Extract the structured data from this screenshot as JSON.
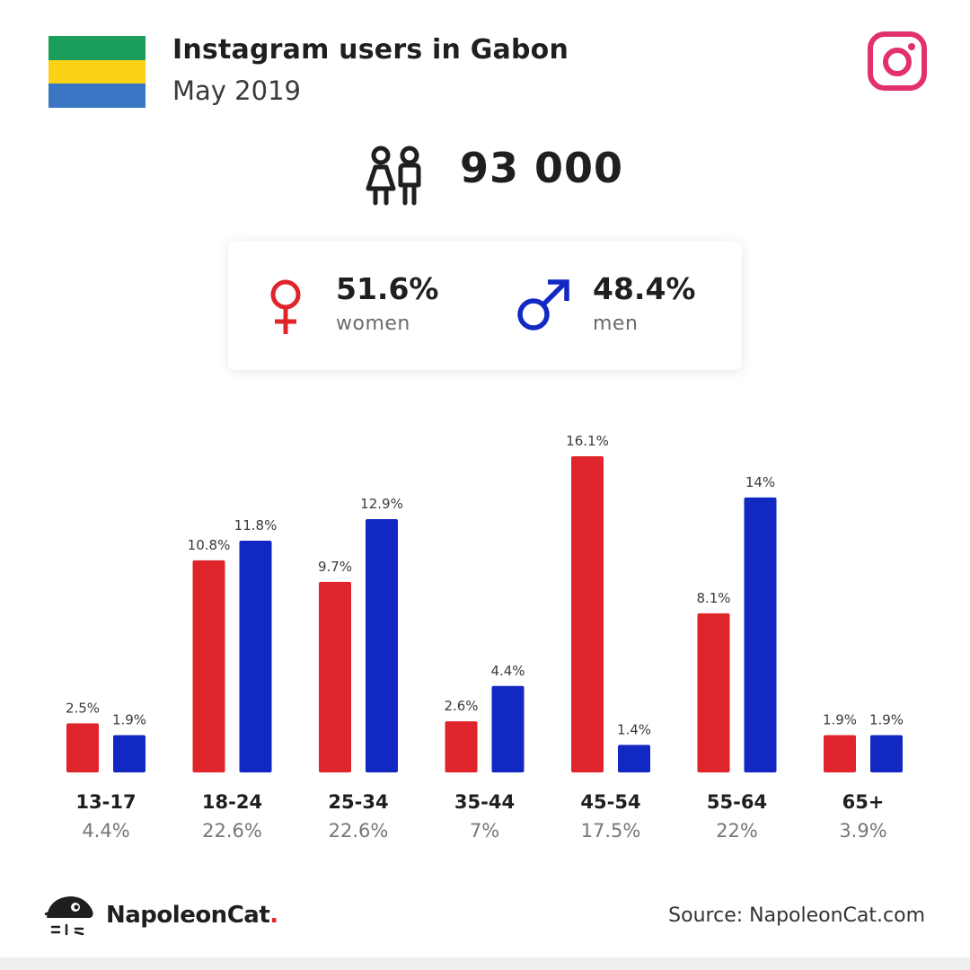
{
  "header": {
    "title": "Instagram users in Gabon",
    "subtitle": "May 2019",
    "flag_colors": [
      "#1a9e5a",
      "#fcd116",
      "#3a75c4"
    ]
  },
  "total": {
    "value": "93 000"
  },
  "gender": {
    "women": {
      "pct": "51.6%",
      "label": "women",
      "color": "#e0242b"
    },
    "men": {
      "pct": "48.4%",
      "label": "men",
      "color": "#1128c2"
    }
  },
  "chart_data": {
    "type": "bar",
    "categories": [
      "13-17",
      "18-24",
      "25-34",
      "35-44",
      "45-54",
      "55-64",
      "65+"
    ],
    "category_totals": [
      "4.4%",
      "22.6%",
      "22.6%",
      "7%",
      "17.5%",
      "22%",
      "3.9%"
    ],
    "series": [
      {
        "name": "women",
        "color": "#e0242b",
        "values": [
          2.5,
          10.8,
          9.7,
          2.6,
          16.1,
          8.1,
          1.9
        ],
        "labels": [
          "2.5%",
          "10.8%",
          "9.7%",
          "2.6%",
          "16.1%",
          "8.1%",
          "1.9%"
        ]
      },
      {
        "name": "men",
        "color": "#1128c2",
        "values": [
          1.9,
          11.8,
          12.9,
          4.4,
          1.4,
          14,
          1.9
        ],
        "labels": [
          "1.9%",
          "11.8%",
          "12.9%",
          "4.4%",
          "1.4%",
          "14%",
          "1.9%"
        ]
      }
    ],
    "ylim": [
      0,
      16.1
    ]
  },
  "footer": {
    "brand_name": "NapoleonCat",
    "brand_dot": ".",
    "source": "Source: NapoleonCat.com"
  },
  "icons": [
    "instagram-icon",
    "users-icon",
    "female-icon",
    "male-icon",
    "napoleoncat-logo-icon"
  ]
}
